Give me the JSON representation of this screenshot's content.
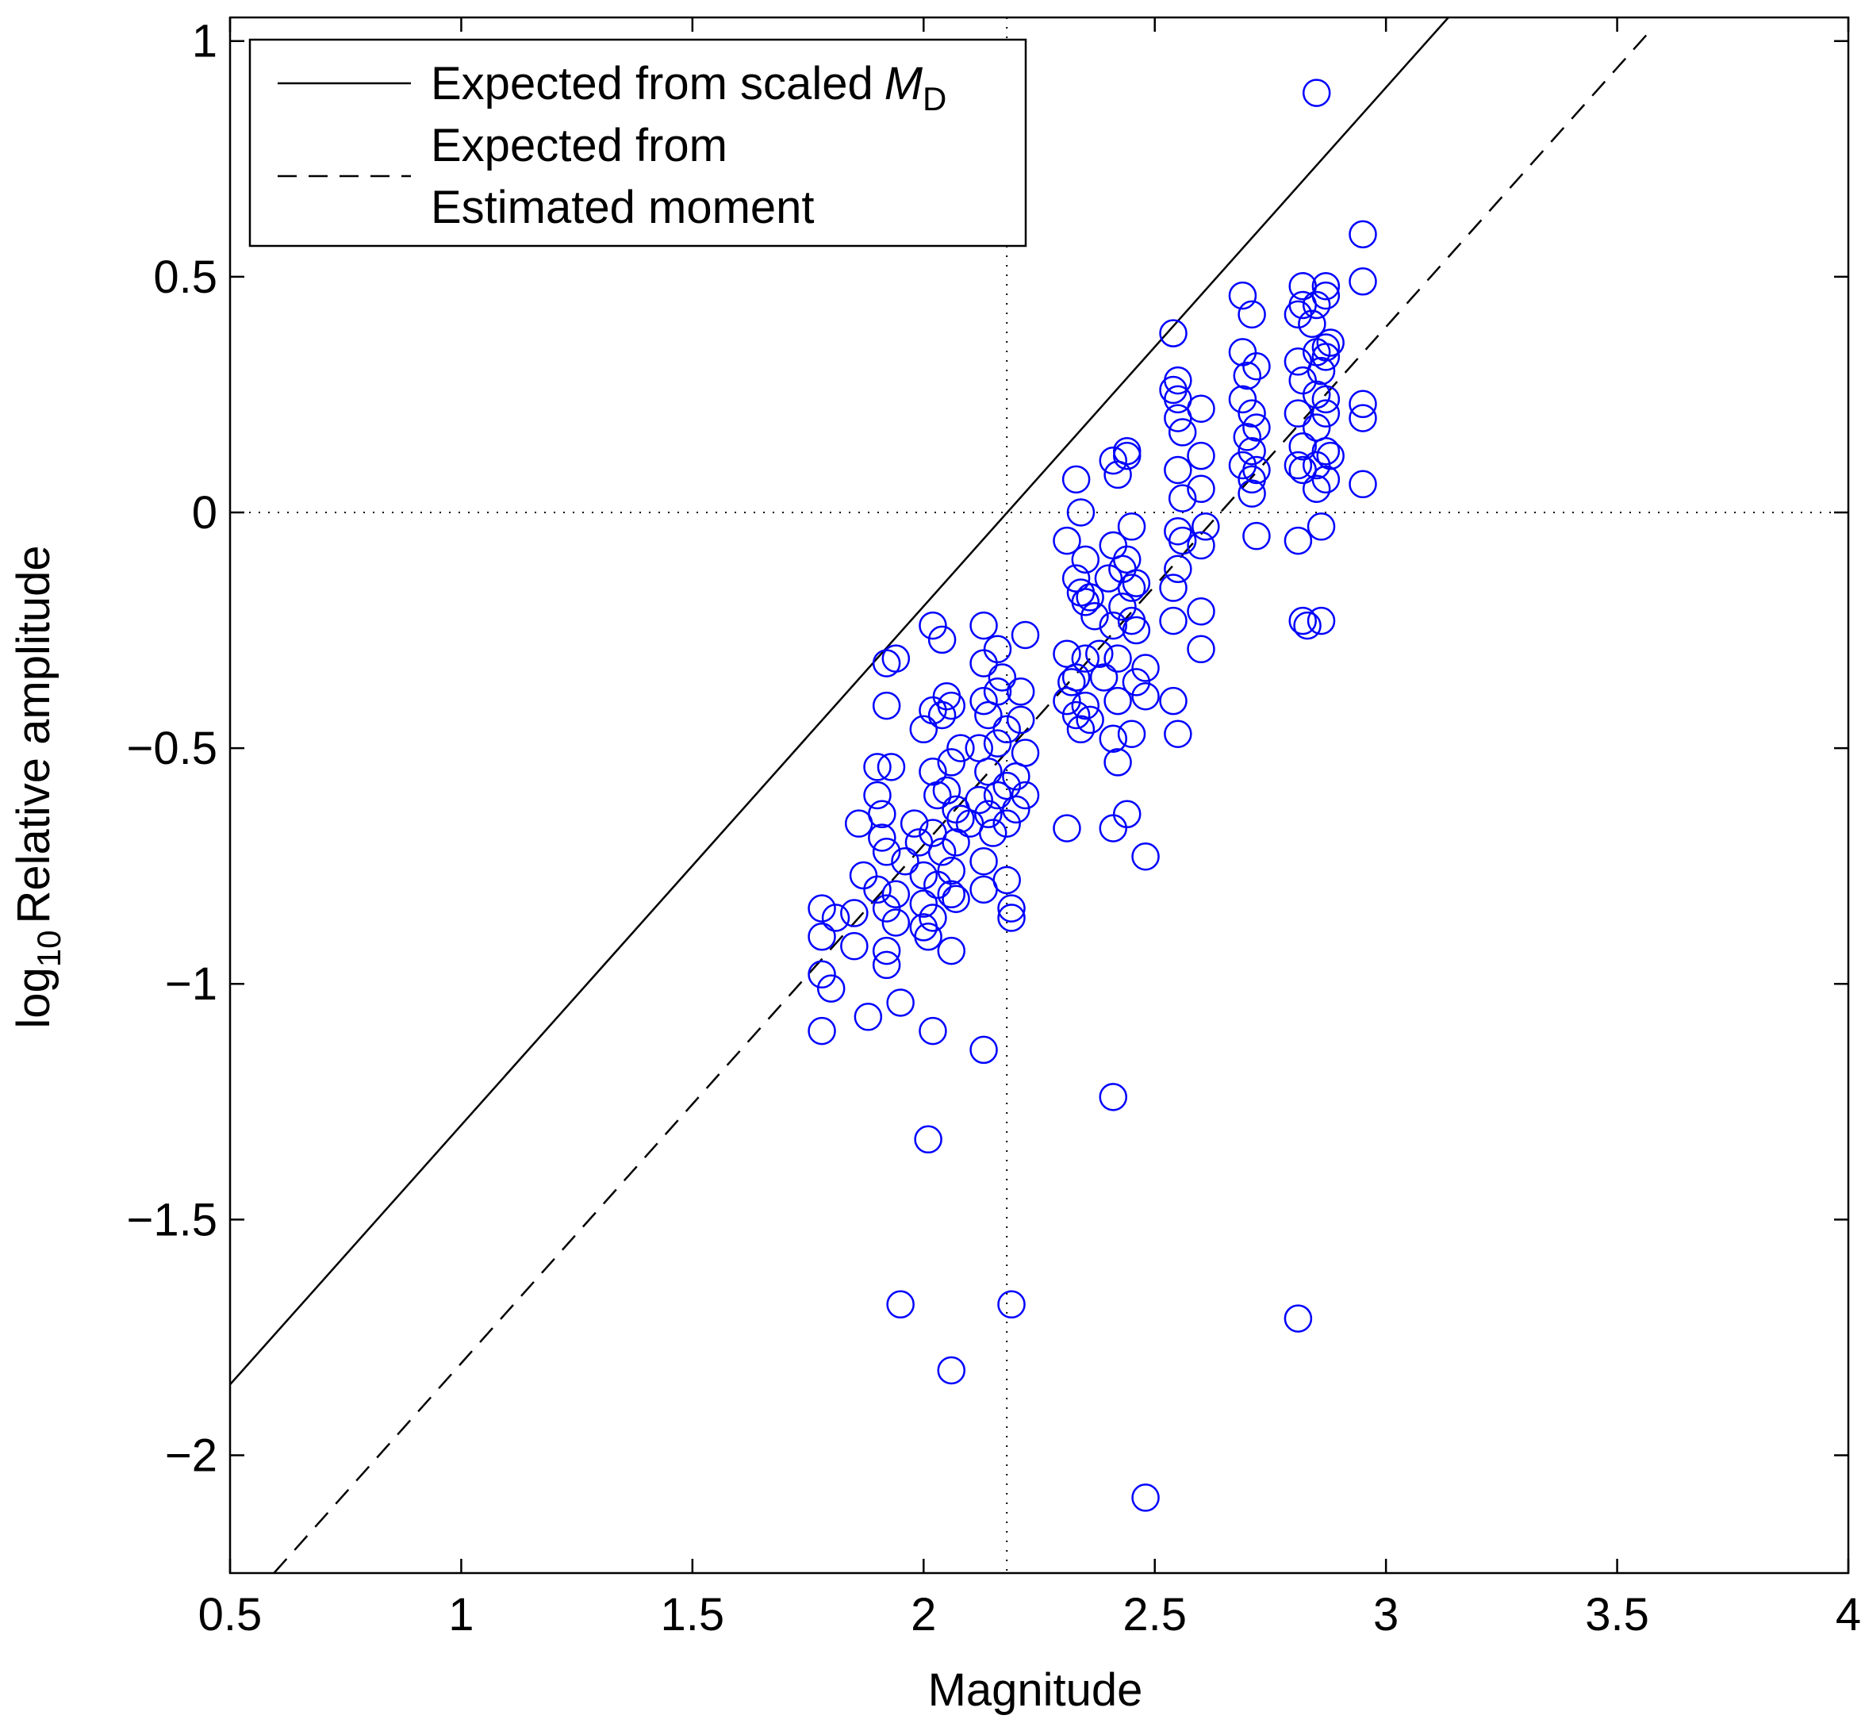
{
  "chart_data": {
    "type": "scatter",
    "xlabel": "Magnitude",
    "ylabel": {
      "prefix": "log",
      "subscript": "10",
      "text": "Relative amplitude"
    },
    "xlim": [
      0.5,
      4
    ],
    "ylim": [
      -2.25,
      1.05
    ],
    "xticks": [
      0.5,
      1,
      1.5,
      2,
      2.5,
      3,
      3.5,
      4
    ],
    "yticks": [
      {
        "value": -2,
        "label": "−2"
      },
      {
        "value": -1.5,
        "label": "−1.5"
      },
      {
        "value": -1,
        "label": "−1"
      },
      {
        "value": -0.5,
        "label": "−0.5"
      },
      0,
      0.5,
      1
    ],
    "legend": "upper left",
    "reference_lines": [
      {
        "axis": "x",
        "value": 2.18
      },
      {
        "axis": "y",
        "value": 0
      }
    ],
    "series": [
      {
        "name": "Expected from scaled",
        "name_math": "M",
        "name_subscript": "D",
        "style": "solid",
        "color": "#000000",
        "x": [
          0.5,
          3.135
        ],
        "values": [
          -1.85,
          1.05
        ]
      },
      {
        "name": [
          "Expected from",
          "Estimated moment"
        ],
        "style": "dashed",
        "color": "#000000",
        "x": [
          0.595,
          3.57
        ],
        "values": [
          -2.25,
          1.02
        ]
      },
      {
        "style": "circle",
        "color": "#0000ff",
        "x": [
          2.85,
          2.95,
          2.95,
          2.95,
          2.95,
          2.95,
          2.54,
          2.41,
          2.44,
          2.44,
          2.42,
          2.33,
          2.34,
          2.31,
          2.35,
          1.78,
          1.88,
          1.95,
          2.02,
          2.13,
          2.01,
          2.41,
          1.95,
          2.19,
          2.06,
          2.81,
          2.48,
          2.31,
          2.41,
          2.44,
          2.48,
          2.06,
          1.8,
          1.78,
          1.78,
          1.78,
          1.81,
          1.85,
          1.85,
          1.87,
          1.86,
          1.9,
          1.9,
          1.91,
          1.92,
          1.92,
          1.94,
          1.93,
          1.91,
          1.92,
          1.9,
          1.92,
          1.92,
          1.92,
          1.94,
          1.94,
          1.96,
          1.98,
          1.99,
          2.0,
          2.0,
          2.0,
          2.01,
          2.02,
          2.02,
          2.03,
          2.02,
          2.0,
          2.02,
          2.02,
          2.04,
          2.04,
          2.05,
          2.06,
          2.06,
          2.05,
          2.07,
          2.07,
          2.06,
          2.06,
          2.07,
          2.03,
          2.04,
          2.08,
          2.08,
          2.1,
          2.12,
          2.12,
          2.13,
          2.13,
          2.13,
          2.14,
          2.14,
          2.14,
          2.13,
          2.13,
          2.15,
          2.16,
          2.16,
          2.16,
          2.16,
          2.17,
          2.18,
          2.18,
          2.18,
          2.18,
          2.19,
          2.19,
          2.2,
          2.21,
          2.21,
          2.22,
          2.22,
          2.22,
          2.2,
          2.31,
          2.32,
          2.31,
          2.33,
          2.33,
          2.34,
          2.35,
          2.35,
          2.36,
          2.33,
          2.34,
          2.35,
          2.36,
          2.37,
          2.38,
          2.39,
          2.4,
          2.41,
          2.41,
          2.42,
          2.42,
          2.41,
          2.42,
          2.43,
          2.43,
          2.44,
          2.45,
          2.45,
          2.45,
          2.46,
          2.45,
          2.46,
          2.48,
          2.48,
          2.46,
          2.54,
          2.54,
          2.54,
          2.55,
          2.55,
          2.56,
          2.55,
          2.56,
          2.55,
          2.55,
          2.55,
          2.55,
          2.56,
          2.54,
          2.6,
          2.6,
          2.6,
          2.6,
          2.6,
          2.6,
          2.61,
          2.69,
          2.69,
          2.7,
          2.69,
          2.7,
          2.69,
          2.71,
          2.71,
          2.71,
          2.71,
          2.71,
          2.72,
          2.72,
          2.72,
          2.72,
          2.81,
          2.82,
          2.82,
          2.81,
          2.82,
          2.81,
          2.82,
          2.81,
          2.82,
          2.81,
          2.82,
          2.83,
          2.86,
          2.84,
          2.85,
          2.85,
          2.85,
          2.85,
          2.85,
          2.85,
          2.86,
          2.87,
          2.87,
          2.87,
          2.87,
          2.87,
          2.87,
          2.87,
          2.87,
          2.86,
          2.88,
          2.88
        ],
        "values": [
          0.89,
          0.59,
          0.49,
          0.23,
          0.2,
          0.06,
          0.38,
          0.11,
          0.13,
          0.12,
          0.08,
          0.07,
          0.0,
          -0.06,
          -0.1,
          -1.1,
          -1.07,
          -1.04,
          -1.1,
          -1.14,
          -1.33,
          -1.24,
          -1.68,
          -1.68,
          -1.82,
          -1.71,
          -2.09,
          -0.67,
          -0.67,
          -0.64,
          -0.73,
          -0.93,
          -1.01,
          -0.98,
          -0.9,
          -0.84,
          -0.86,
          -0.92,
          -0.85,
          -0.77,
          -0.66,
          -0.54,
          -0.6,
          -0.64,
          -0.41,
          -0.32,
          -0.31,
          -0.54,
          -0.69,
          -0.72,
          -0.8,
          -0.84,
          -0.93,
          -0.96,
          -0.87,
          -0.81,
          -0.74,
          -0.66,
          -0.7,
          -0.77,
          -0.83,
          -0.88,
          -0.9,
          -0.86,
          -0.68,
          -0.6,
          -0.55,
          -0.46,
          -0.42,
          -0.24,
          -0.27,
          -0.43,
          -0.39,
          -0.41,
          -0.53,
          -0.59,
          -0.63,
          -0.7,
          -0.76,
          -0.81,
          -0.82,
          -0.79,
          -0.72,
          -0.65,
          -0.5,
          -0.66,
          -0.61,
          -0.5,
          -0.32,
          -0.24,
          -0.4,
          -0.43,
          -0.55,
          -0.64,
          -0.74,
          -0.8,
          -0.68,
          -0.6,
          -0.49,
          -0.38,
          -0.29,
          -0.35,
          -0.46,
          -0.58,
          -0.66,
          -0.78,
          -0.84,
          -0.86,
          -0.56,
          -0.44,
          -0.38,
          -0.26,
          -0.51,
          -0.6,
          -0.63,
          -0.3,
          -0.36,
          -0.4,
          -0.35,
          -0.43,
          -0.46,
          -0.31,
          -0.41,
          -0.44,
          -0.14,
          -0.17,
          -0.19,
          -0.18,
          -0.22,
          -0.3,
          -0.35,
          -0.14,
          -0.07,
          -0.24,
          -0.31,
          -0.4,
          -0.48,
          -0.53,
          -0.2,
          -0.12,
          -0.1,
          -0.03,
          -0.16,
          -0.23,
          -0.25,
          -0.47,
          -0.36,
          -0.33,
          -0.39,
          -0.15,
          -0.16,
          -0.23,
          -0.4,
          -0.47,
          -0.12,
          -0.06,
          -0.04,
          0.03,
          0.09,
          0.2,
          0.24,
          0.28,
          0.17,
          0.26,
          0.22,
          0.12,
          0.05,
          -0.07,
          -0.21,
          -0.29,
          -0.03,
          0.46,
          0.34,
          0.29,
          0.24,
          0.16,
          0.1,
          0.42,
          0.21,
          0.13,
          0.07,
          0.04,
          -0.05,
          0.18,
          0.31,
          0.09,
          0.42,
          0.48,
          0.44,
          0.32,
          0.28,
          0.21,
          0.14,
          0.1,
          0.09,
          -0.06,
          -0.23,
          -0.24,
          -0.23,
          0.4,
          0.44,
          0.34,
          0.25,
          0.18,
          0.1,
          0.05,
          -0.03,
          0.48,
          0.46,
          0.35,
          0.33,
          0.24,
          0.21,
          0.13,
          0.07,
          0.3,
          0.36,
          0.12
        ]
      }
    ]
  }
}
